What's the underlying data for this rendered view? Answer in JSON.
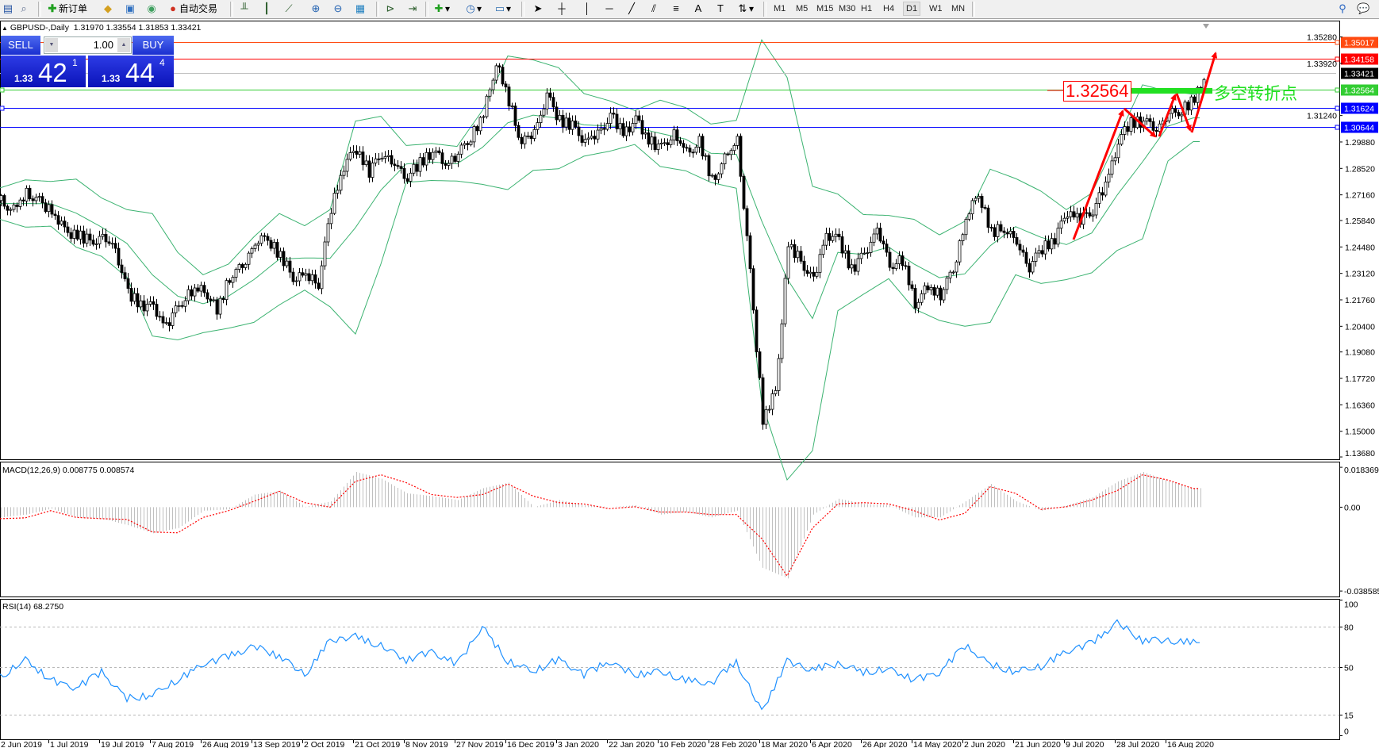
{
  "toolbar": {
    "new_order": "新订单",
    "auto_trading": "自动交易",
    "periods": [
      "M1",
      "M5",
      "M15",
      "M30",
      "H1",
      "H4",
      "D1",
      "W1",
      "MN"
    ],
    "active_period": "D1",
    "icons": [
      "new-chart-icon",
      "navigator-icon",
      "new-order-icon",
      "gold-icon",
      "market-watch-icon",
      "signals-icon",
      "auto-trading-icon",
      "bar-chart-icon",
      "candlestick-icon",
      "line-chart-icon",
      "zoom-in-icon",
      "zoom-out-icon",
      "tile-windows-icon",
      "chart-shift-icon",
      "auto-scroll-icon",
      "indicators-icon",
      "periods-icon",
      "templates-icon",
      "cursor-icon",
      "crosshair-icon",
      "vertical-line-icon",
      "horizontal-line-icon",
      "trendline-icon",
      "fibo-channel-icon",
      "fibo-retracement-icon",
      "text-icon",
      "text-label-icon",
      "arrows-icon",
      "search-icon",
      "chat-icon"
    ]
  },
  "chart": {
    "symbol_title": "GBPUSD-,Daily",
    "ohlc": "1.31970 1.33554 1.31853 1.33421"
  },
  "trade_panel": {
    "sell": "SELL",
    "buy": "BUY",
    "lot": "1.00",
    "sell_price": {
      "prefix": "1.33",
      "big": "42",
      "sup": "1"
    },
    "buy_price": {
      "prefix": "1.33",
      "big": "44",
      "sup": "4"
    }
  },
  "annotations": {
    "price_label": "1.32564",
    "pivot_text": "多空转折点"
  },
  "hlines": [
    {
      "price": 1.35017,
      "label": "1.35017",
      "color": "#ff4a10",
      "anchor_left": false
    },
    {
      "price": 1.34158,
      "label": "1.34158",
      "color": "#ff0000",
      "anchor_left": false
    },
    {
      "price": 1.33421,
      "label": "1.33421",
      "color": "#000000",
      "line_color": "#c0c0c0",
      "anchor_left": false
    },
    {
      "price": 1.32564,
      "label": "1.32564",
      "color": "#32cd32",
      "anchor_left": true
    },
    {
      "price": 1.31624,
      "label": "1.31624",
      "color": "#0000ff",
      "anchor_left": true
    },
    {
      "price": 1.30644,
      "label": "1.30644",
      "color": "#0000ff",
      "anchor_left": false
    }
  ],
  "price_axis": {
    "ticks": [
      "1.35280",
      "1.33920",
      "1.31240",
      "1.29880",
      "1.28520",
      "1.27160",
      "1.25840",
      "1.24480",
      "1.23120",
      "1.21760",
      "1.20400",
      "1.19080",
      "1.17720",
      "1.16360",
      "1.15000",
      "1.13680"
    ]
  },
  "macd": {
    "title": "MACD(12,26,9) 0.008775 0.008574",
    "ticks": [
      {
        "label": "0.018369",
        "value": 0.018369
      },
      {
        "label": "0.00",
        "value": 0
      },
      {
        "label": "-0.038585",
        "value": -0.038585
      }
    ]
  },
  "rsi": {
    "title": "RSI(14) 68.2750",
    "ticks": [
      {
        "label": "100",
        "value": 100
      },
      {
        "label": "80",
        "value": 80,
        "level": true
      },
      {
        "label": "50",
        "value": 50,
        "level": true
      },
      {
        "label": "15",
        "value": 15,
        "level": true
      },
      {
        "label": "0",
        "value": 0
      }
    ]
  },
  "time_axis": {
    "labels": [
      "2 Jun 2019",
      "1 Jul 2019",
      "19 Jul 2019",
      "7 Aug 2019",
      "26 Aug 2019",
      "13 Sep 2019",
      "2 Oct 2019",
      "21 Oct 2019",
      "8 Nov 2019",
      "27 Nov 2019",
      "16 Dec 2019",
      "3 Jan 2020",
      "22 Jan 2020",
      "10 Feb 2020",
      "28 Feb 2020",
      "18 Mar 2020",
      "6 Apr 2020",
      "26 Apr 2020",
      "14 May 2020",
      "2 Jun 2020",
      "21 Jun 2020",
      "9 Jul 2020",
      "28 Jul 2020",
      "16 Aug 2020"
    ]
  },
  "colors": {
    "candle_up_fill": "#ffffff",
    "candle_down_fill": "#000000",
    "bollinger": "#3cb371",
    "macd_hist": "#c0c0c0",
    "macd_signal": "#ff0000",
    "rsi_line": "#1e90ff",
    "trend_arrows": "#ff0000",
    "pivot": "#22e022"
  },
  "chart_data": {
    "type": "candlestick",
    "symbol": "GBPUSD-",
    "timeframe": "Daily",
    "ylim": [
      1.1356,
      1.3608
    ],
    "close_every_4_bars": [
      1.2687,
      1.264,
      1.2725,
      1.268,
      1.263,
      1.253,
      1.251,
      1.248,
      1.25,
      1.244,
      1.2211,
      1.215,
      1.2135,
      1.204,
      1.215,
      1.222,
      1.2235,
      1.212,
      1.229,
      1.2343,
      1.2467,
      1.249,
      1.24,
      1.2295,
      1.2305,
      1.226,
      1.2647,
      1.286,
      1.295,
      1.2834,
      1.2932,
      1.287,
      1.281,
      1.288,
      1.294,
      1.287,
      1.2922,
      1.301,
      1.313,
      1.34,
      1.32,
      1.298,
      1.304,
      1.322,
      1.31,
      1.307,
      1.2995,
      1.303,
      1.313,
      1.3035,
      1.31,
      1.2997,
      1.2955,
      1.303,
      1.2935,
      1.299,
      1.279,
      1.29,
      1.3,
      1.231,
      1.156,
      1.17,
      1.246,
      1.238,
      1.228,
      1.2515,
      1.248,
      1.233,
      1.241,
      1.254,
      1.236,
      1.238,
      1.216,
      1.224,
      1.22,
      1.2325,
      1.259,
      1.2728,
      1.252,
      1.255,
      1.247,
      1.234,
      1.244,
      1.2485,
      1.263,
      1.259,
      1.264,
      1.277,
      1.299,
      1.309,
      1.309,
      1.3052,
      1.313,
      1.315,
      1.321,
      1.33421
    ],
    "bollinger_upper_every_8_bars": [
      1.2752,
      1.2793,
      1.2785,
      1.2797,
      1.27,
      1.264,
      1.262,
      1.242,
      1.2305,
      1.236,
      1.25,
      1.262,
      1.2557,
      1.264,
      1.3095,
      1.312,
      1.297,
      1.298,
      1.2965,
      1.315,
      1.343,
      1.341,
      1.337,
      1.3237,
      1.32,
      1.315,
      1.3203,
      1.3165,
      1.308,
      1.3099,
      1.3513,
      1.332,
      1.276,
      1.272,
      1.2615,
      1.261,
      1.259,
      1.251,
      1.258,
      1.2848,
      1.28,
      1.2735,
      1.264,
      1.2725,
      1.3,
      1.3282,
      1.3248,
      1.3234
    ],
    "bollinger_lower_every_8_bars": [
      1.259,
      1.255,
      1.2555,
      1.2447,
      1.24,
      1.2292,
      1.199,
      1.197,
      1.2007,
      1.203,
      1.206,
      1.215,
      1.2226,
      1.214,
      1.2,
      1.236,
      1.278,
      1.279,
      1.2787,
      1.277,
      1.2743,
      1.2842,
      1.285,
      1.2915,
      1.294,
      1.2975,
      1.2862,
      1.284,
      1.278,
      1.275,
      1.165,
      1.125,
      1.14,
      1.212,
      1.2204,
      1.2285,
      1.213,
      1.207,
      1.204,
      1.206,
      1.2305,
      1.226,
      1.228,
      1.2315,
      1.243,
      1.249,
      1.289,
      1.299
    ],
    "macd_ylim": [
      -0.0411,
      0.0206
    ],
    "macd_main_every_8_bars": [
      -0.0047,
      -0.0034,
      -0.0007,
      -0.0047,
      -0.0053,
      -0.0083,
      -0.012,
      -0.0096,
      -0.0016,
      -0.001,
      0.0058,
      0.0076,
      0.0002,
      0.0027,
      0.0162,
      0.0131,
      0.0064,
      0.0051,
      0.0033,
      0.0088,
      0.0113,
      0.0,
      0.0033,
      0.0009,
      0.0,
      0.0009,
      -0.0034,
      -0.0022,
      -0.0047,
      -0.0016,
      -0.0279,
      -0.0328,
      -0.0034,
      0.0039,
      0.0015,
      0.0009,
      -0.0047,
      -0.0047,
      0.0027,
      0.0107,
      0.0027,
      -0.0016,
      0.0009,
      0.0045,
      0.0119,
      0.0162,
      0.0119,
      0.008775
    ],
    "macd_signal_every_8_bars": [
      -0.0053,
      -0.0049,
      -0.0016,
      -0.0047,
      -0.0053,
      -0.0056,
      -0.0114,
      -0.0118,
      -0.0047,
      -0.0016,
      0.0027,
      0.0073,
      0.0021,
      0.0,
      0.0119,
      0.0149,
      0.0113,
      0.0058,
      0.0045,
      0.0058,
      0.0107,
      0.0051,
      0.0021,
      0.0015,
      -0.0007,
      0.0002,
      -0.0022,
      -0.0022,
      -0.0034,
      -0.0034,
      -0.0144,
      -0.0316,
      -0.0096,
      0.0015,
      0.0021,
      0.0015,
      -0.0016,
      -0.0059,
      -0.0028,
      0.0094,
      0.0064,
      -0.001,
      0.0002,
      0.0033,
      0.0076,
      0.0149,
      0.0125,
      0.008574
    ],
    "rsi_ylim": [
      -3,
      100
    ],
    "rsi_levels": [
      80,
      50,
      15
    ],
    "rsi_every_8_bars": [
      42.8,
      55.3,
      40.8,
      35.0,
      46.6,
      27.3,
      29.2,
      40.8,
      52.4,
      58.2,
      66.0,
      58.2,
      44.7,
      69.8,
      72.7,
      66.0,
      55.3,
      62.1,
      52.4,
      80.0,
      54.4,
      46.6,
      56.3,
      44.7,
      54.4,
      44.7,
      46.6,
      40.8,
      37.9,
      54.4,
      17.6,
      54.4,
      48.6,
      52.4,
      46.6,
      48.6,
      40.8,
      46.6,
      66.0,
      52.4,
      46.6,
      50.5,
      62.1,
      67.9,
      83.4,
      69.8,
      69.8,
      68.275
    ]
  }
}
